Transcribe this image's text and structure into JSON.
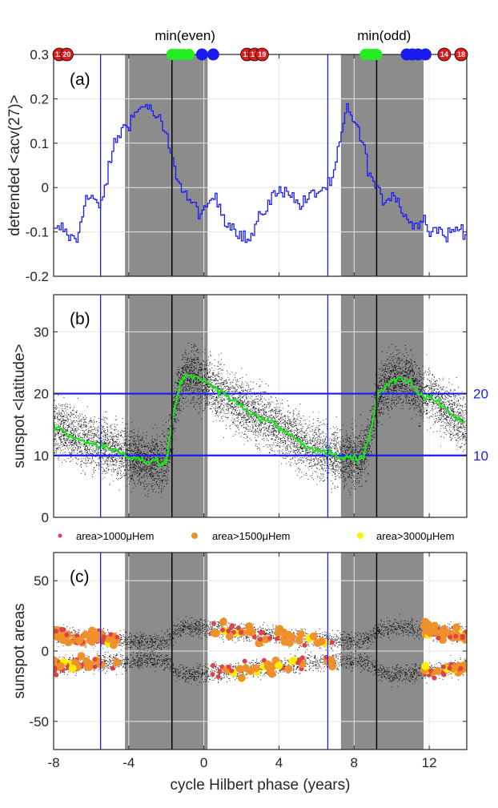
{
  "chart_data": [
    {
      "panel": "(a)",
      "type": "line",
      "ylabel": "detrended <acv(27)>",
      "xlim": [
        -8,
        14
      ],
      "ylim": [
        -0.2,
        0.3
      ],
      "yticks": [
        "-0.2",
        "-0.1",
        "0",
        "0.1",
        "0.2",
        "0.3"
      ],
      "grid": true,
      "series": [
        {
          "color": "#1a1aff",
          "step": true,
          "x": [
            -8.0,
            -7.6,
            -7.2,
            -6.8,
            -6.4,
            -6.0,
            -5.6,
            -5.2,
            -4.8,
            -4.4,
            -4.0,
            -3.6,
            -3.2,
            -2.8,
            -2.4,
            -2.0,
            -1.6,
            -1.2,
            -0.8,
            -0.4,
            0.0,
            0.4,
            0.8,
            1.2,
            1.6,
            2.0,
            2.4,
            2.8,
            3.2,
            3.6,
            4.0,
            4.4,
            4.8,
            5.2,
            5.6,
            6.0,
            6.4,
            6.8,
            7.2,
            7.6,
            8.0,
            8.4,
            8.8,
            9.2,
            9.6,
            10.0,
            10.4,
            10.8,
            11.2,
            11.6,
            12.0,
            12.4,
            12.8,
            13.2,
            13.6,
            14.0
          ],
          "y": [
            -0.1,
            -0.09,
            -0.11,
            -0.12,
            -0.03,
            -0.02,
            -0.05,
            0.02,
            0.1,
            0.13,
            0.15,
            0.17,
            0.19,
            0.17,
            0.15,
            0.11,
            0.04,
            0.0,
            -0.03,
            -0.05,
            -0.06,
            -0.02,
            -0.04,
            -0.08,
            -0.09,
            -0.11,
            -0.12,
            -0.08,
            -0.05,
            -0.02,
            -0.01,
            0.0,
            -0.03,
            -0.04,
            -0.02,
            -0.01,
            0.0,
            0.01,
            0.1,
            0.18,
            0.15,
            0.1,
            0.03,
            -0.01,
            -0.03,
            -0.01,
            -0.04,
            -0.07,
            -0.09,
            -0.06,
            -0.1,
            -0.09,
            -0.11,
            -0.1,
            -0.09,
            -0.1
          ]
        }
      ]
    },
    {
      "panel": "(b)",
      "type": "scatter",
      "ylabel": "sunspot <latitude>",
      "xlim": [
        -8,
        14
      ],
      "ylim": [
        0,
        36
      ],
      "yticks": [
        "0",
        "10",
        "20",
        "30"
      ],
      "grid": true,
      "reference_lines": [
        "10",
        "20"
      ],
      "series": [
        {
          "color": "#19e619",
          "x": [
            -8.0,
            -7.5,
            -7.0,
            -6.5,
            -6.0,
            -5.5,
            -5.0,
            -4.5,
            -4.0,
            -3.5,
            -3.0,
            -2.5,
            -2.2,
            -2.0,
            -1.8,
            -1.6,
            -1.4,
            -1.2,
            -1.0,
            -0.5,
            0.0,
            0.5,
            1.0,
            1.5,
            2.0,
            2.5,
            3.0,
            3.5,
            4.0,
            4.5,
            5.0,
            5.5,
            6.0,
            6.5,
            7.0,
            7.5,
            8.0,
            8.5,
            8.8,
            9.2,
            9.6,
            10.0,
            10.5,
            11.0,
            11.5,
            12.0,
            12.5,
            13.0,
            13.5,
            14.0
          ],
          "y": [
            15,
            14,
            13,
            12.5,
            12,
            11.5,
            11,
            10.5,
            10,
            9.5,
            9,
            9,
            8.5,
            9,
            13,
            17,
            20,
            22,
            23,
            23,
            22,
            21,
            20,
            19,
            18,
            17,
            16,
            15.5,
            14.5,
            13.5,
            12.5,
            11.5,
            11,
            10.5,
            10,
            9.5,
            9.5,
            10,
            13,
            19,
            21,
            22,
            22.5,
            22,
            20,
            19.5,
            18.5,
            17,
            16,
            14.5
          ]
        }
      ]
    },
    {
      "panel": "(c)",
      "type": "scatter",
      "ylabel": "sunspot areas",
      "xlabel": "cycle Hilbert phase (years)",
      "xlim": [
        -8,
        14
      ],
      "ylim": [
        -70,
        70
      ],
      "yticks": [
        "-50",
        "0",
        "50"
      ],
      "xticks": [
        "-8",
        "-4",
        "0",
        "4",
        "8",
        "12"
      ],
      "grid": true,
      "legend": [
        {
          "label": "area>1000μHem",
          "color": "#e0404a"
        },
        {
          "label": "area>1500μHem",
          "color": "#f0902a"
        },
        {
          "label": "area>3000μHem",
          "color": "#ffee00"
        }
      ]
    }
  ],
  "shading": {
    "color": "#8c8c8c",
    "intervals": [
      [
        -4.2,
        0.2
      ],
      [
        7.3,
        11.7
      ]
    ]
  },
  "black_lines": [
    -1.7,
    9.2
  ],
  "blue_lines": [
    -5.5,
    6.6
  ],
  "top_labels": [
    {
      "text": "min(even)",
      "x": -1.0
    },
    {
      "text": "min(odd)",
      "x": 9.6
    }
  ],
  "top_markers": {
    "green": [
      -1.7,
      -1.5,
      -1.3,
      -1.1,
      -0.8,
      8.6,
      8.8,
      9.0,
      9.2
    ],
    "blue": [
      -0.1,
      0.5,
      10.8,
      11.1,
      11.4,
      11.8
    ],
    "red": [
      {
        "x": -7.7,
        "label": "12"
      },
      {
        "x": -7.3,
        "label": "20"
      },
      {
        "x": 2.3,
        "label": "13"
      },
      {
        "x": 2.7,
        "label": "17"
      },
      {
        "x": 3.1,
        "label": "19"
      },
      {
        "x": 12.8,
        "label": "14"
      },
      {
        "x": 13.7,
        "label": "18"
      }
    ]
  }
}
